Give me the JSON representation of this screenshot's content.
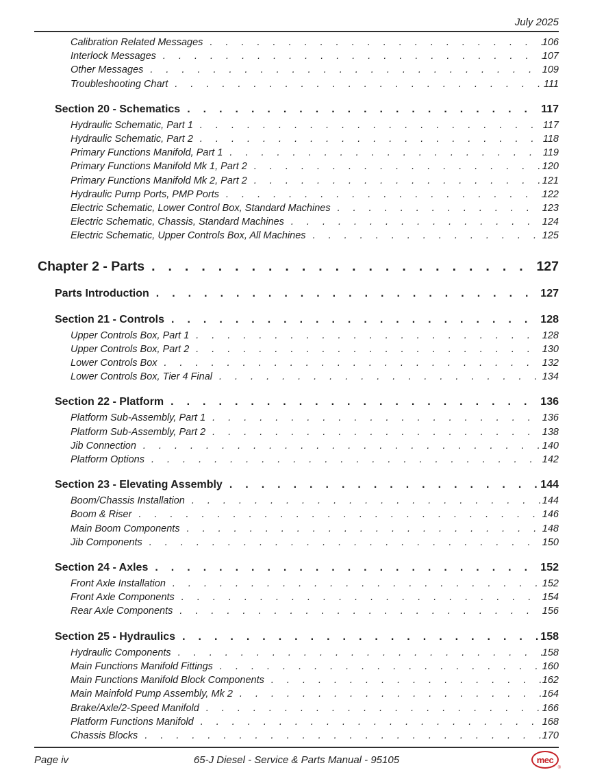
{
  "header": {
    "date": "July 2025"
  },
  "toc": {
    "groups": [
      {
        "style": "plain",
        "items": [
          {
            "label": "Calibration Related Messages",
            "page": "106"
          },
          {
            "label": "Interlock Messages",
            "page": "107"
          },
          {
            "label": "Other Messages",
            "page": "109"
          },
          {
            "label": "Troubleshooting Chart",
            "page": "111"
          }
        ]
      },
      {
        "style": "section",
        "title": "Section 20 - Schematics",
        "page": "117",
        "items": [
          {
            "label": "Hydraulic Schematic, Part 1",
            "page": "117"
          },
          {
            "label": "Hydraulic Schematic, Part 2",
            "page": "118"
          },
          {
            "label": "Primary Functions Manifold, Part 1",
            "page": "119"
          },
          {
            "label": "Primary Functions Manifold Mk 1, Part 2",
            "page": "120"
          },
          {
            "label": "Primary Functions Manifold Mk 2, Part 2",
            "page": "121"
          },
          {
            "label": "Hydraulic Pump Ports, PMP Ports",
            "page": "122"
          },
          {
            "label": "Electric Schematic, Lower Control Box, Standard Machines",
            "page": "123"
          },
          {
            "label": "Electric Schematic, Chassis, Standard Machines",
            "page": "124"
          },
          {
            "label": "Electric Schematic, Upper Controls Box, All Machines",
            "page": "125"
          }
        ]
      },
      {
        "style": "chapter",
        "title": "Chapter 2 - Parts",
        "page": "127",
        "items": []
      },
      {
        "style": "intro",
        "title": "Parts Introduction",
        "page": "127",
        "items": []
      },
      {
        "style": "section",
        "title": "Section 21 - Controls",
        "page": "128",
        "items": [
          {
            "label": "Upper Controls Box, Part 1",
            "page": "128"
          },
          {
            "label": "Upper Controls Box, Part 2",
            "page": "130"
          },
          {
            "label": "Lower Controls Box",
            "page": "132"
          },
          {
            "label": "Lower Controls Box, Tier 4 Final",
            "page": "134"
          }
        ]
      },
      {
        "style": "section",
        "title": "Section 22 - Platform",
        "page": "136",
        "items": [
          {
            "label": "Platform Sub-Assembly, Part 1",
            "page": "136"
          },
          {
            "label": "Platform Sub-Assembly, Part 2",
            "page": "138"
          },
          {
            "label": "Jib Connection",
            "page": "140"
          },
          {
            "label": "Platform Options",
            "page": "142"
          }
        ]
      },
      {
        "style": "section",
        "title": "Section 23 - Elevating Assembly",
        "page": "144",
        "items": [
          {
            "label": "Boom/Chassis Installation",
            "page": "144"
          },
          {
            "label": "Boom & Riser",
            "page": "146"
          },
          {
            "label": "Main Boom Components",
            "page": "148"
          },
          {
            "label": "Jib Components",
            "page": "150"
          }
        ]
      },
      {
        "style": "section",
        "title": "Section 24 - Axles",
        "page": "152",
        "items": [
          {
            "label": "Front Axle Installation",
            "page": "152"
          },
          {
            "label": "Front Axle Components",
            "page": "154"
          },
          {
            "label": "Rear Axle Components",
            "page": "156"
          }
        ]
      },
      {
        "style": "section",
        "title": "Section 25 - Hydraulics",
        "page": "158",
        "items": [
          {
            "label": "Hydraulic Components",
            "page": "158"
          },
          {
            "label": "Main Functions Manifold Fittings",
            "page": "160"
          },
          {
            "label": "Main Functions Manifold Block Components",
            "page": "162"
          },
          {
            "label": "Main Mainfold Pump Assembly, Mk 2",
            "page": "164"
          },
          {
            "label": "Brake/Axle/2-Speed Manifold",
            "page": "166"
          },
          {
            "label": "Platform Functions Manifold",
            "page": "168"
          },
          {
            "label": "Chassis Blocks",
            "page": "170"
          }
        ]
      }
    ]
  },
  "footer": {
    "page_label": "Page iv",
    "center_text": "65-J Diesel - Service & Parts Manual - 95105",
    "logo_text": "mec",
    "logo_registered": "®"
  },
  "colors": {
    "text": "#1d1d1d",
    "rule": "#2e2e2e",
    "logo_red": "#c52127"
  }
}
